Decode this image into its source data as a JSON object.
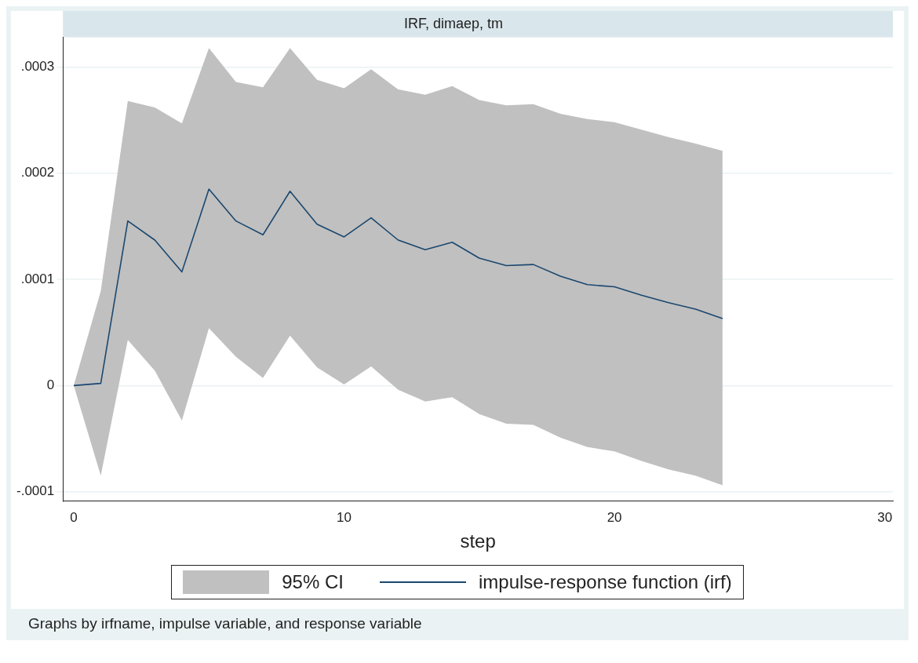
{
  "chart_data": {
    "type": "line",
    "title": "IRF, dimaep, tm",
    "xlabel": "step",
    "x": [
      0,
      1,
      2,
      3,
      4,
      5,
      6,
      7,
      8,
      9,
      10,
      11,
      12,
      13,
      14,
      15,
      16,
      17,
      18,
      19,
      20,
      21,
      22,
      23,
      24
    ],
    "series": [
      {
        "name": "impulse-response function (irf)",
        "type": "line",
        "color": "#1a476f",
        "values": [
          0,
          2e-06,
          0.000155,
          0.000137,
          0.000107,
          0.000185,
          0.000155,
          0.000142,
          0.000183,
          0.000152,
          0.00014,
          0.000158,
          0.000137,
          0.000128,
          0.000135,
          0.00012,
          0.000113,
          0.000114,
          0.000103,
          9.5e-05,
          9.3e-05,
          8.5e-05,
          7.8e-05,
          7.2e-05,
          6.3e-05
        ],
        "lower": [
          0,
          -8.5e-05,
          4.3e-05,
          1.4e-05,
          -3.3e-05,
          5.4e-05,
          2.7e-05,
          7e-06,
          4.7e-05,
          1.7e-05,
          1e-06,
          1.8e-05,
          -4e-06,
          -1.5e-05,
          -1.1e-05,
          -2.7e-05,
          -3.6e-05,
          -3.7e-05,
          -4.9e-05,
          -5.8e-05,
          -6.2e-05,
          -7.1e-05,
          -7.9e-05,
          -8.5e-05,
          -9.4e-05
        ],
        "upper": [
          0,
          8.9e-05,
          0.000268,
          0.000262,
          0.000247,
          0.000318,
          0.000286,
          0.000281,
          0.000318,
          0.000288,
          0.00028,
          0.000298,
          0.000279,
          0.000274,
          0.000282,
          0.000269,
          0.000264,
          0.000265,
          0.000256,
          0.000251,
          0.000248,
          0.000241,
          0.000234,
          0.000228,
          0.000221
        ]
      }
    ],
    "xlim": [
      -0.4,
      30.3
    ],
    "xticks": [
      0,
      10,
      20,
      30
    ],
    "ylim": [
      -0.000109,
      0.000328
    ],
    "yticks": [
      {
        "value": -0.0001,
        "label": "-.0001"
      },
      {
        "value": 0,
        "label": "0"
      },
      {
        "value": 0.0001,
        "label": ".0001"
      },
      {
        "value": 0.0002,
        "label": ".0002"
      },
      {
        "value": 0.0003,
        "label": ".0003"
      }
    ],
    "grid": "y",
    "legend": "bottom",
    "marker": "none",
    "line_style": "solid",
    "annotations": [
      "95% CI",
      "Graphs by irfname, impulse variable, and response variable"
    ]
  }
}
